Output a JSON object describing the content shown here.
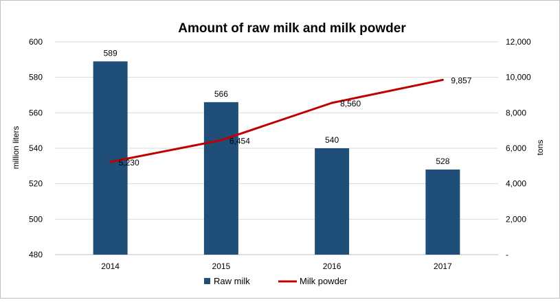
{
  "chart_data": {
    "type": "bar",
    "title": "Amount of raw milk and milk powder",
    "categories": [
      "2014",
      "2015",
      "2016",
      "2017"
    ],
    "series": [
      {
        "name": "Raw milk",
        "type": "bar",
        "axis": "left",
        "color": "#1f4e79",
        "values": [
          589,
          566,
          540,
          528
        ],
        "labels": [
          "589",
          "566",
          "540",
          "528"
        ]
      },
      {
        "name": "Milk powder",
        "type": "line",
        "axis": "right",
        "color": "#c00000",
        "values": [
          5230,
          6454,
          8560,
          9857
        ],
        "labels": [
          "5,230",
          "6,454",
          "8,560",
          "9,857"
        ]
      }
    ],
    "ylabel": "million liters",
    "y2label": "tons",
    "ylim": [
      480,
      600
    ],
    "y2lim": [
      0,
      12000
    ],
    "yticks": [
      "480",
      "500",
      "520",
      "540",
      "560",
      "580",
      "600"
    ],
    "y2ticks": [
      "-",
      "2,000",
      "4,000",
      "6,000",
      "8,000",
      "10,000",
      "12,000"
    ],
    "grid": true,
    "legend_position": "bottom"
  }
}
